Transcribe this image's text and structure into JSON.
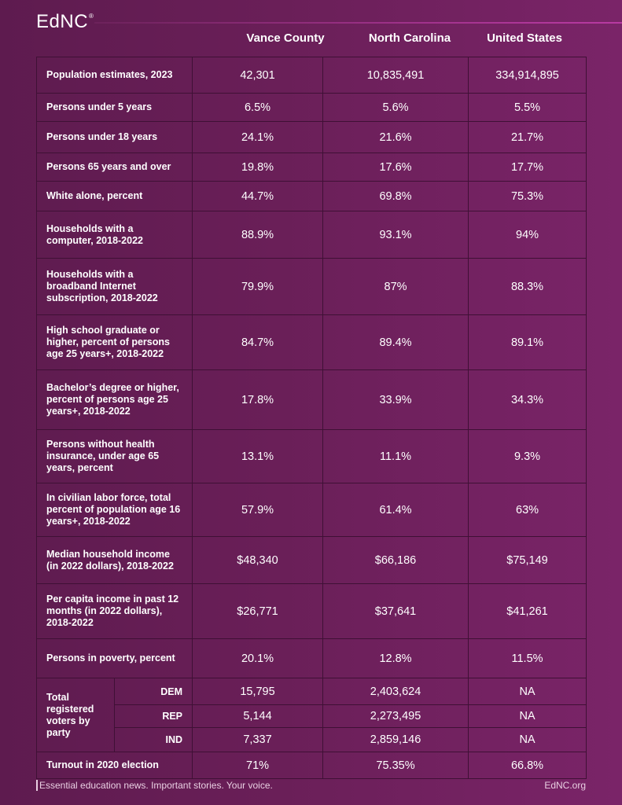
{
  "brand": {
    "logo": "EdNC",
    "mark": "®"
  },
  "columns": [
    "Vance  County",
    "North Carolina",
    "United States"
  ],
  "rows": [
    {
      "label": "Population estimates, 2023",
      "vance": "42,301",
      "nc": "10,835,491",
      "us": "334,914,895"
    },
    {
      "label": "Persons under 5 years",
      "vance": "6.5%",
      "nc": "5.6%",
      "us": "5.5%"
    },
    {
      "label": "Persons under 18 years",
      "vance": "24.1%",
      "nc": "21.6%",
      "us": "21.7%"
    },
    {
      "label": "Persons 65 years and over",
      "vance": "19.8%",
      "nc": "17.6%",
      "us": "17.7%"
    },
    {
      "label": "White alone, percent",
      "vance": "44.7%",
      "nc": "69.8%",
      "us": "75.3%"
    },
    {
      "label": "Households with a computer, 2018-2022",
      "vance": "88.9%",
      "nc": "93.1%",
      "us": "94%"
    },
    {
      "label": "Households with a broadband Internet subscription, 2018-2022",
      "vance": "79.9%",
      "nc": "87%",
      "us": "88.3%"
    },
    {
      "label": "High school graduate or higher, percent of persons age 25 years+, 2018-2022",
      "vance": "84.7%",
      "nc": "89.4%",
      "us": "89.1%"
    },
    {
      "label": "Bachelor’s degree or higher, percent of persons age 25 years+, 2018-2022",
      "vance": "17.8%",
      "nc": "33.9%",
      "us": "34.3%"
    },
    {
      "label": "Persons without health insurance, under age 65 years, percent",
      "vance": "13.1%",
      "nc": "11.1%",
      "us": "9.3%"
    },
    {
      "label": "In civilian labor force, total percent of population age 16 years+, 2018-2022",
      "vance": "57.9%",
      "nc": "61.4%",
      "us": "63%"
    },
    {
      "label": "Median household income (in 2022 dollars), 2018-2022",
      "vance": "$48,340",
      "nc": "$66,186",
      "us": "$75,149"
    },
    {
      "label": "Per capita income in past 12 months (in 2022 dollars), 2018-2022",
      "vance": "$26,771",
      "nc": "$37,641",
      "us": "$41,261"
    },
    {
      "label": "Persons in poverty, percent",
      "vance": "20.1%",
      "nc": "12.8%",
      "us": "11.5%"
    }
  ],
  "voters": {
    "label": "Total registered voters by party",
    "parties": [
      {
        "party": "DEM",
        "vance": "15,795",
        "nc": "2,403,624",
        "us": "NA"
      },
      {
        "party": "REP",
        "vance": "5,144",
        "nc": "2,273,495",
        "us": "NA"
      },
      {
        "party": "IND",
        "vance": "7,337",
        "nc": "2,859,146",
        "us": "NA"
      }
    ]
  },
  "turnout": {
    "label": "Turnout in 2020 election",
    "vance": "71%",
    "nc": "75.35%",
    "us": "66.8%"
  },
  "footer": {
    "tagline": "Essential education news. Important stories. Your voice.",
    "site": "EdNC.org"
  }
}
